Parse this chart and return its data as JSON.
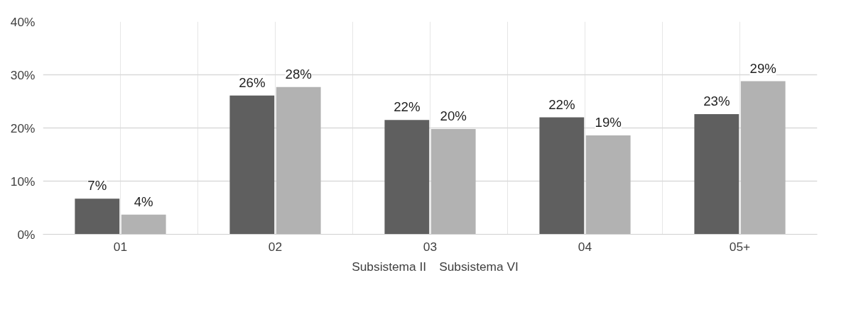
{
  "chart_data": {
    "type": "bar",
    "categories": [
      "01",
      "02",
      "03",
      "04",
      "05+"
    ],
    "series": [
      {
        "name": "Subsistema II",
        "color": "#5f5f5f",
        "values": [
          6.7,
          26.1,
          21.5,
          22.0,
          22.6
        ],
        "value_labels": [
          "7%",
          "26%",
          "22%",
          "22%",
          "23%"
        ]
      },
      {
        "name": "Subsistema VI",
        "color": "#b2b2b2",
        "values": [
          3.7,
          27.7,
          19.8,
          18.6,
          28.8
        ],
        "value_labels": [
          "4%",
          "28%",
          "20%",
          "19%",
          "29%"
        ]
      }
    ],
    "ylim": [
      0,
      40
    ],
    "yticks": [
      {
        "value": 0,
        "label": "0%"
      },
      {
        "value": 10,
        "label": "10%"
      },
      {
        "value": 20,
        "label": "20%"
      },
      {
        "value": 30,
        "label": "30%"
      },
      {
        "value": 40,
        "label": "40%"
      }
    ],
    "grid": true,
    "legend": "bottom"
  }
}
